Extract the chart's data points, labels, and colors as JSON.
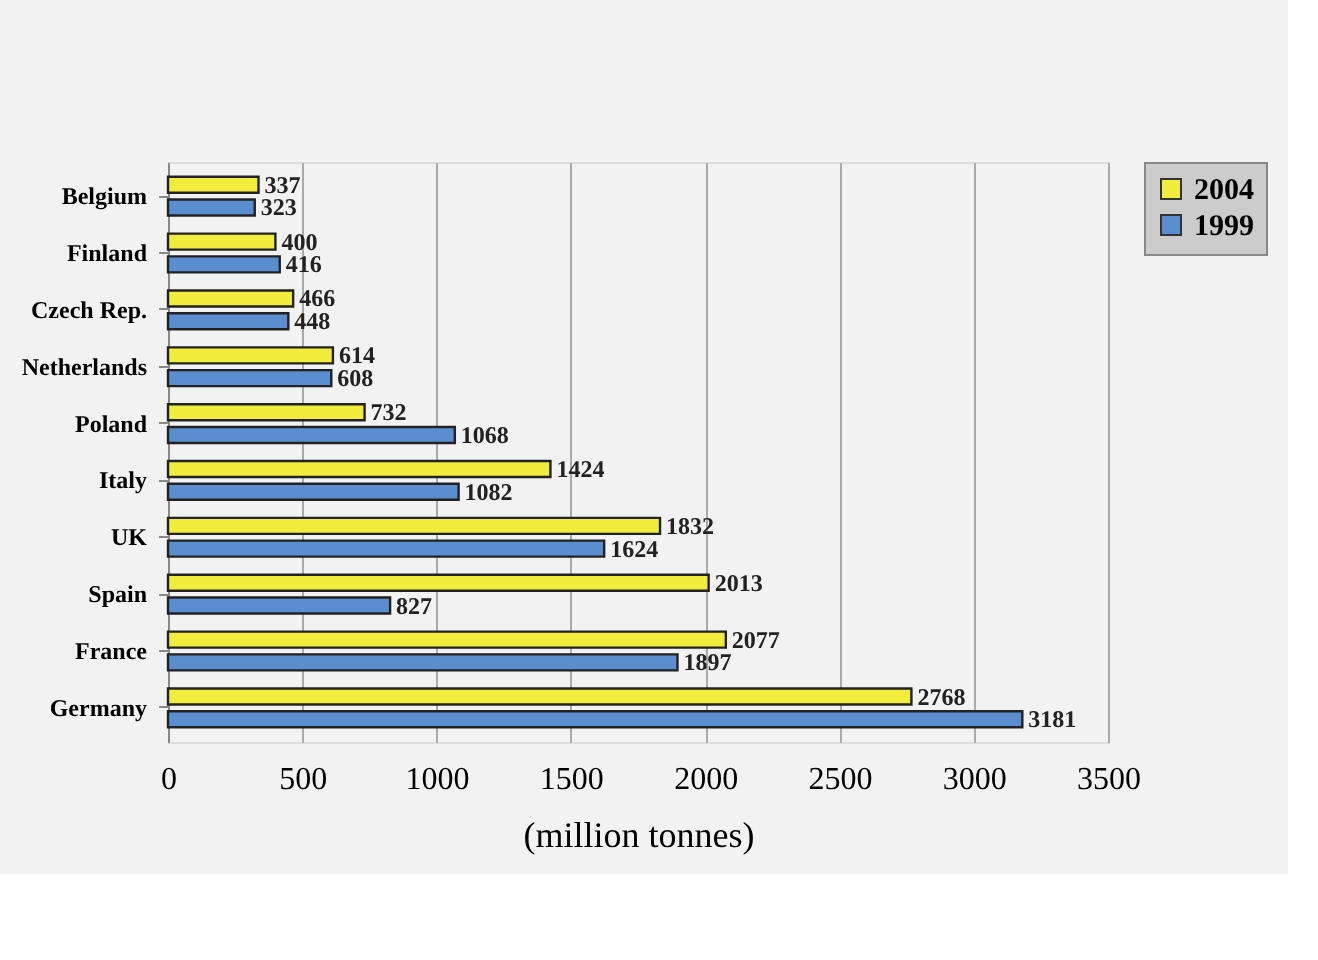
{
  "chart_data": {
    "type": "bar",
    "orientation": "horizontal",
    "xlabel": "(million tonnes)",
    "categories": [
      "Belgium",
      "Finland",
      "Czech Rep.",
      "Netherlands",
      "Poland",
      "Italy",
      "UK",
      "Spain",
      "France",
      "Germany"
    ],
    "series": [
      {
        "name": "2004",
        "color": "#f2ec3c",
        "values": [
          337,
          400,
          466,
          614,
          732,
          1424,
          1832,
          2013,
          2077,
          2768
        ]
      },
      {
        "name": "1999",
        "color": "#5b8ed0",
        "values": [
          323,
          416,
          448,
          608,
          1068,
          1082,
          1624,
          827,
          1897,
          3181
        ]
      }
    ],
    "xlim": [
      0,
      3500
    ],
    "xticks": [
      0,
      500,
      1000,
      1500,
      2000,
      2500,
      3000,
      3500
    ],
    "grid": "x",
    "legend": "right",
    "data_labels": true
  }
}
